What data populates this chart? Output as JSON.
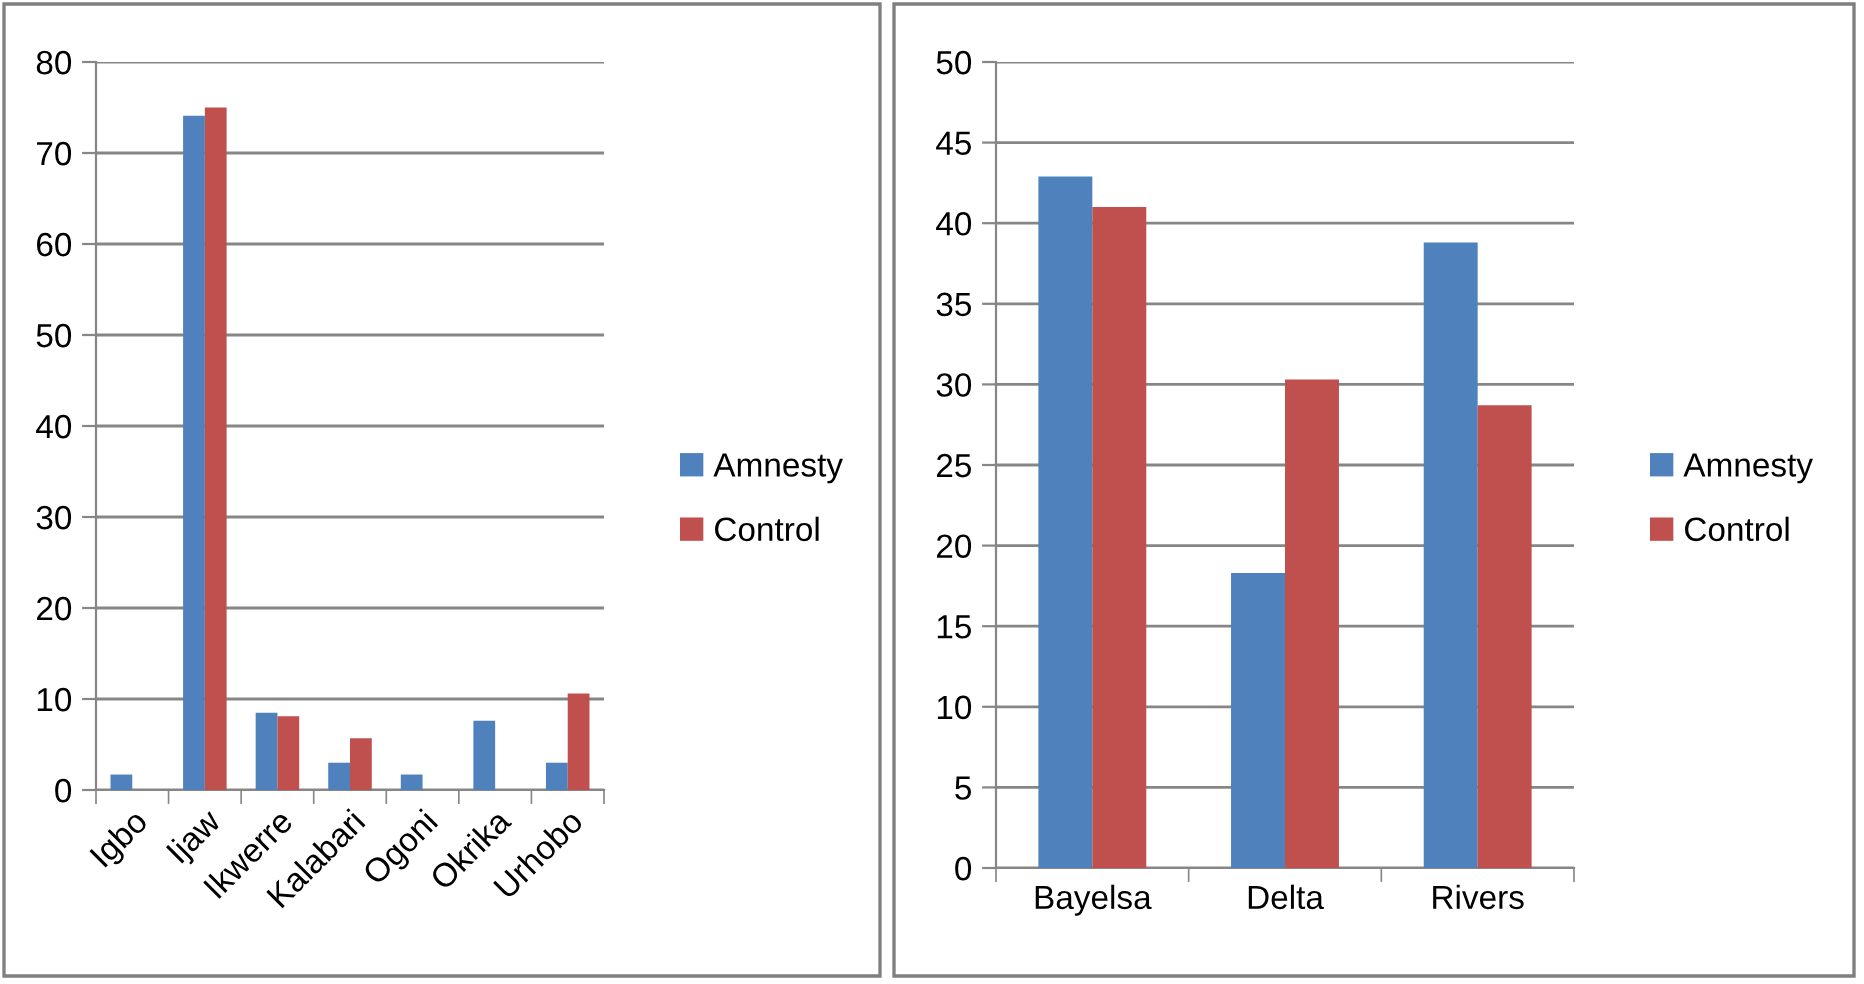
{
  "chart_data": [
    {
      "type": "bar",
      "categories": [
        "Igbo",
        "Ijaw",
        "Ikwerre",
        "Kalabari",
        "Ogoni",
        "Okrika",
        "Urhobo"
      ],
      "series": [
        {
          "name": "Amnesty",
          "color": "#4f81bd",
          "values": [
            1.7,
            74.1,
            8.5,
            3.0,
            1.7,
            7.6,
            3.0
          ]
        },
        {
          "name": "Control",
          "color": "#c0504d",
          "values": [
            null,
            75.0,
            8.1,
            5.7,
            null,
            null,
            10.6
          ]
        }
      ],
      "ylim": [
        0,
        80
      ],
      "yticks": [
        0,
        10,
        20,
        30,
        40,
        50,
        60,
        70,
        80
      ],
      "grid": "y",
      "legend": "right"
    },
    {
      "type": "bar",
      "categories": [
        "Bayelsa",
        "Delta",
        "Rivers"
      ],
      "series": [
        {
          "name": "Amnesty",
          "color": "#4f81bd",
          "values": [
            42.9,
            18.3,
            38.8
          ]
        },
        {
          "name": "Control",
          "color": "#c0504d",
          "values": [
            41.0,
            30.3,
            28.7
          ]
        }
      ],
      "ylim": [
        0,
        50
      ],
      "yticks": [
        0,
        5,
        10,
        15,
        20,
        25,
        30,
        35,
        40,
        45,
        50
      ],
      "grid": "y",
      "legend": "right"
    }
  ]
}
